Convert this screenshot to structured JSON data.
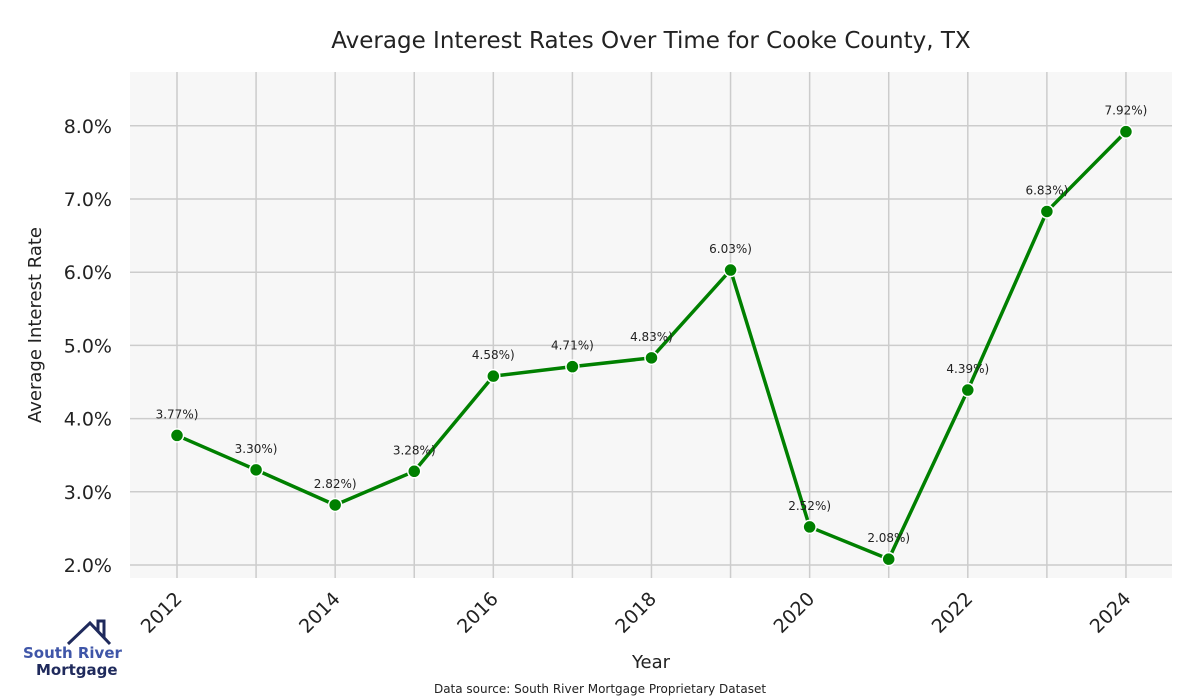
{
  "chart_data": {
    "type": "line",
    "title": "Average Interest Rates Over Time for Cooke County, TX",
    "xlabel": "Year",
    "ylabel": "Average Interest Rate",
    "x": [
      2012,
      2013,
      2014,
      2015,
      2016,
      2017,
      2018,
      2019,
      2020,
      2021,
      2022,
      2023,
      2024
    ],
    "series": [
      {
        "name": "Average Interest Rate",
        "values": [
          3.77,
          3.3,
          2.82,
          3.28,
          4.58,
          4.71,
          4.83,
          6.03,
          2.52,
          2.08,
          4.39,
          6.83,
          7.92
        ],
        "labels": [
          "3.77%)",
          "3.30%)",
          "2.82%)",
          "3.28%)",
          "4.58%)",
          "4.71%)",
          "4.83%)",
          "6.03%)",
          "2.52%)",
          "2.08%)",
          "4.39%)",
          "6.83%)",
          "7.92%)"
        ]
      }
    ],
    "xticks": [
      "2012",
      "2014",
      "2016",
      "2018",
      "2020",
      "2022",
      "2024"
    ],
    "yticks": [
      2,
      3,
      4,
      5,
      6,
      7,
      8
    ],
    "ytick_labels": [
      "2.0%",
      "3.0%",
      "4.0%",
      "5.0%",
      "6.0%",
      "7.0%",
      "8.0%"
    ],
    "ylim": [
      1.8,
      8.7
    ],
    "grid": true,
    "line_color": "#008000",
    "plot_bg": "#f7f7f7",
    "source": "Data source: South River Mortgage Proprietary Dataset"
  },
  "logo": {
    "line1": "South River",
    "line2": "Mortgage"
  }
}
